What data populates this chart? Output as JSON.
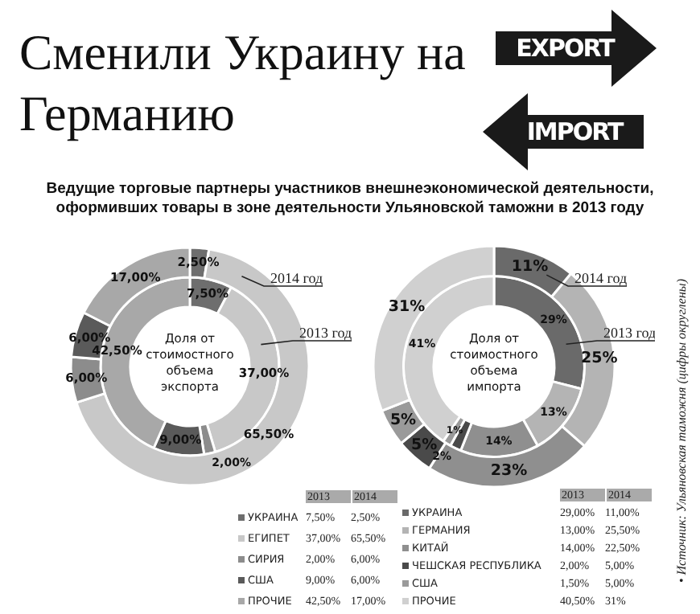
{
  "chart_data": [
    {
      "type": "donut",
      "title": "Сменили Украину на Германию",
      "subtitle": "Ведущие торговые партнеры участников внешнеэкономической деятельности, оформивших товары в зоне деятельности Ульяновской таможни в 2013 году",
      "categories": [
        "УКРАИНА",
        "ЕГИПЕТ",
        "СИРИЯ",
        "США",
        "ПРОЧИЕ"
      ],
      "colors": [
        "#6e6e6e",
        "#c8c8c8",
        "#8c8c8c",
        "#5a5a5a",
        "#a8a8a8"
      ],
      "legend": "bottom",
      "series": [
        {
          "name": "2013 год",
          "values": [
            7.5,
            37,
            2,
            9,
            42.5
          ],
          "value_labels": [
            "7,50%",
            "37,00%",
            "2,00%",
            "9,00%",
            "42,50%"
          ]
        },
        {
          "name": "2014 год",
          "values": [
            2.5,
            65.5,
            6,
            6,
            17
          ],
          "value_labels": [
            "2,50%",
            "65,50%",
            "6,00%",
            "6,00%",
            "17,00%"
          ]
        }
      ],
      "annotations": [
        "Доля от стоимостного объема экспорта",
        "2013",
        "2014",
        "EXPORT"
      ]
    },
    {
      "type": "donut",
      "categories": [
        "УКРАИНА",
        "ГЕРМАНИЯ",
        "КИТАЙ",
        "ЧЕШСКАЯ РЕСПУБЛИКА",
        "США",
        "ПРОЧИЕ"
      ],
      "colors": [
        "#6a6a6a",
        "#b4b4b4",
        "#8f8f8f",
        "#4a4a4a",
        "#9a9a9a",
        "#d0d0d0"
      ],
      "legend": "bottom",
      "series": [
        {
          "name": "2013 год",
          "values": [
            29,
            13,
            14,
            2,
            1.5,
            40.5
          ],
          "value_labels": [
            "29%",
            "13%",
            "14%",
            "2%",
            "1%",
            "41%"
          ]
        },
        {
          "name": "2014 год",
          "values": [
            11,
            25.5,
            22.5,
            5,
            5,
            31
          ],
          "value_labels": [
            "11%",
            "25%",
            "23%",
            "5%",
            "5%",
            "31%"
          ]
        }
      ],
      "annotations": [
        "Доля от стоимостного объема импорта",
        "2013",
        "2014",
        "IMPORT",
        "• Источник: Ульяновская таможня (цифры округлены)",
        "29,00%",
        "11,00%",
        "13,00%",
        "25,50%",
        "14,00%",
        "22,50%",
        "2,00%",
        "5,00%",
        "1,50%",
        "5,00%",
        "40,50%",
        "31%"
      ]
    }
  ]
}
